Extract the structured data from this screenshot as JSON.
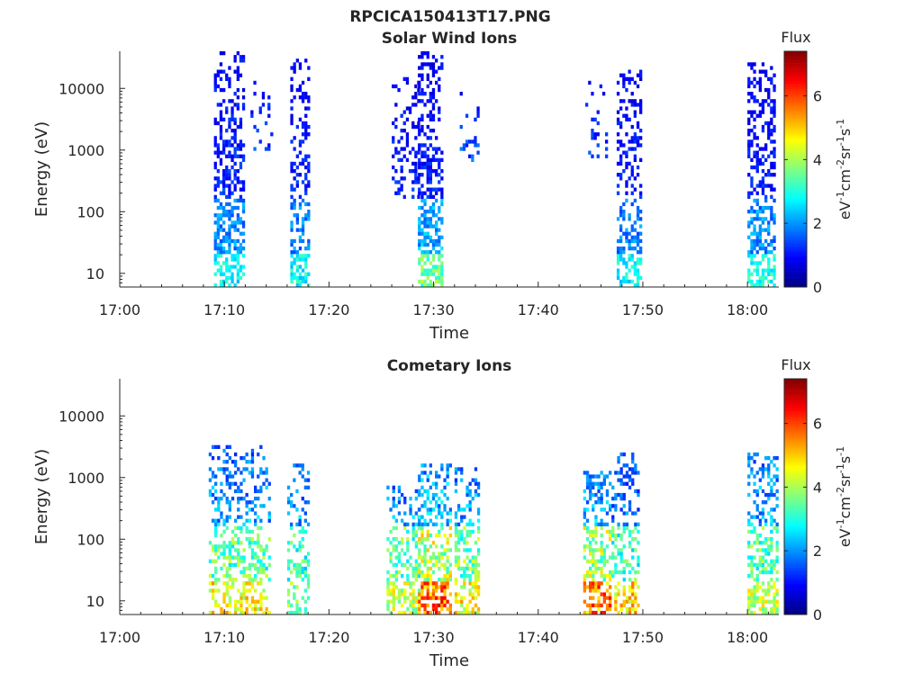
{
  "figure": {
    "title": "RPCICA150413T17.PNG",
    "colorbar": {
      "label": "Flux",
      "unit_base": "eV",
      "unit_parts": [
        {
          "base": "eV",
          "exp": "-1"
        },
        {
          "base": "cm",
          "exp": "-2"
        },
        {
          "base": "sr",
          "exp": "-1"
        },
        {
          "base": "s",
          "exp": "-1"
        }
      ],
      "range": [
        0,
        7.4
      ],
      "ticks": [
        "0",
        "2",
        "4",
        "6"
      ],
      "tick_values": [
        0,
        2,
        4,
        6
      ],
      "colormap": "jet"
    }
  },
  "chart_data": [
    {
      "type": "heatmap",
      "title": "Solar Wind Ions",
      "xlabel": "Time",
      "ylabel": "Energy (eV)",
      "x_ticks": [
        "17:00",
        "17:10",
        "17:20",
        "17:30",
        "17:40",
        "17:50",
        "18:00"
      ],
      "x_tick_minutes": [
        0,
        10,
        20,
        30,
        40,
        50,
        60
      ],
      "xlim_minutes": [
        0,
        63
      ],
      "y_scale": "log",
      "y_ticks": [
        "10",
        "100",
        "1000",
        "10000"
      ],
      "y_tick_values": [
        10,
        100,
        1000,
        10000
      ],
      "ylim": [
        6,
        40000
      ],
      "grid": false,
      "bursts": [
        {
          "t0": 9.0,
          "t1": 11.7,
          "e_min": 6,
          "e_max": 35000,
          "flux_peak": 1.6,
          "low_energy_flux": 3.0,
          "density": 0.55
        },
        {
          "t0": 12.5,
          "t1": 14.5,
          "e_min": 900,
          "e_max": 12000,
          "flux_peak": 1.6,
          "low_energy_flux": 1.6,
          "density": 0.2
        },
        {
          "t0": 16.3,
          "t1": 18.0,
          "e_min": 6,
          "e_max": 30000,
          "flux_peak": 1.5,
          "low_energy_flux": 3.0,
          "density": 0.5
        },
        {
          "t0": 26.0,
          "t1": 28.5,
          "e_min": 150,
          "e_max": 15000,
          "flux_peak": 1.4,
          "low_energy_flux": 1.4,
          "density": 0.3
        },
        {
          "t0": 28.5,
          "t1": 30.9,
          "e_min": 6,
          "e_max": 38000,
          "flux_peak": 1.5,
          "low_energy_flux": 3.8,
          "density": 0.6
        },
        {
          "t0": 32.5,
          "t1": 34.3,
          "e_min": 600,
          "e_max": 8000,
          "flux_peak": 1.8,
          "low_energy_flux": 1.8,
          "density": 0.25
        },
        {
          "t0": 44.5,
          "t1": 46.5,
          "e_min": 600,
          "e_max": 12000,
          "flux_peak": 1.5,
          "low_energy_flux": 1.5,
          "density": 0.15
        },
        {
          "t0": 47.5,
          "t1": 49.9,
          "e_min": 6,
          "e_max": 20000,
          "flux_peak": 1.5,
          "low_energy_flux": 3.0,
          "density": 0.5
        },
        {
          "t0": 60.0,
          "t1": 62.7,
          "e_min": 6,
          "e_max": 25000,
          "flux_peak": 1.5,
          "low_energy_flux": 3.2,
          "density": 0.55
        }
      ]
    },
    {
      "type": "heatmap",
      "title": "Cometary Ions",
      "xlabel": "Time",
      "ylabel": "Energy (eV)",
      "x_ticks": [
        "17:00",
        "17:10",
        "17:20",
        "17:30",
        "17:40",
        "17:50",
        "18:00"
      ],
      "x_tick_minutes": [
        0,
        10,
        20,
        30,
        40,
        50,
        60
      ],
      "xlim_minutes": [
        0,
        63
      ],
      "y_scale": "log",
      "y_ticks": [
        "10",
        "100",
        "1000",
        "10000"
      ],
      "y_tick_values": [
        10,
        100,
        1000,
        10000
      ],
      "ylim": [
        6,
        40000
      ],
      "grid": false,
      "bursts": [
        {
          "t0": 8.5,
          "t1": 14.2,
          "e_min": 6,
          "e_max": 3000,
          "flux_peak": 3.0,
          "low_energy_flux": 5.0,
          "density": 0.45
        },
        {
          "t0": 16.0,
          "t1": 18.0,
          "e_min": 6,
          "e_max": 1500,
          "flux_peak": 3.0,
          "low_energy_flux": 4.0,
          "density": 0.45
        },
        {
          "t0": 25.5,
          "t1": 28.5,
          "e_min": 6,
          "e_max": 700,
          "flux_peak": 3.2,
          "low_energy_flux": 4.5,
          "density": 0.5
        },
        {
          "t0": 28.5,
          "t1": 31.5,
          "e_min": 6,
          "e_max": 1500,
          "flux_peak": 3.5,
          "low_energy_flux": 6.2,
          "density": 0.6
        },
        {
          "t0": 32.0,
          "t1": 34.2,
          "e_min": 6,
          "e_max": 1300,
          "flux_peak": 3.2,
          "low_energy_flux": 5.0,
          "density": 0.55
        },
        {
          "t0": 44.3,
          "t1": 47.0,
          "e_min": 6,
          "e_max": 1200,
          "flux_peak": 3.3,
          "low_energy_flux": 6.0,
          "density": 0.55
        },
        {
          "t0": 47.0,
          "t1": 49.7,
          "e_min": 6,
          "e_max": 2500,
          "flux_peak": 2.6,
          "low_energy_flux": 5.2,
          "density": 0.45
        },
        {
          "t0": 60.0,
          "t1": 62.8,
          "e_min": 6,
          "e_max": 2500,
          "flux_peak": 3.2,
          "low_energy_flux": 4.5,
          "density": 0.55
        }
      ]
    }
  ]
}
